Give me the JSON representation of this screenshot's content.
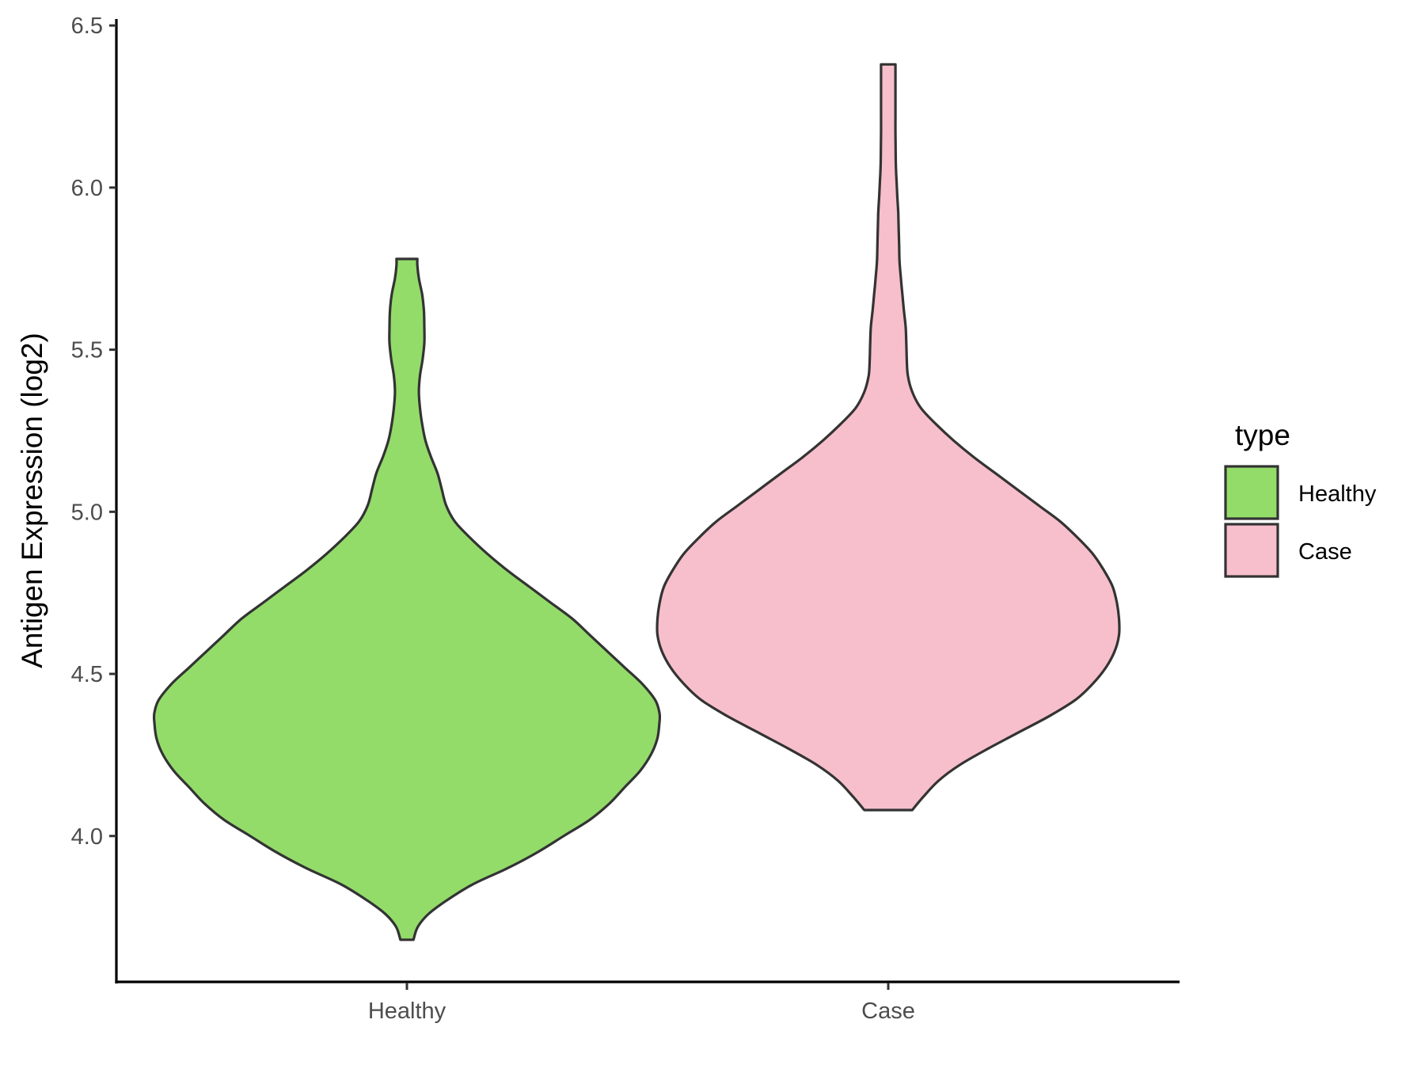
{
  "chart_data": {
    "type": "violin",
    "title": "",
    "xlabel": "",
    "ylabel": "Antigen Expression (log2)",
    "ylim": [
      3.55,
      6.52
    ],
    "yticks": [
      "4.0",
      "4.5",
      "5.0",
      "5.5",
      "6.0",
      "6.5"
    ],
    "categories": [
      "Healthy",
      "Case"
    ],
    "grid": false,
    "legend": {
      "title": "type",
      "position": "right",
      "entries": [
        "Healthy",
        "Case"
      ]
    },
    "series": [
      {
        "name": "Healthy",
        "color": "#93DC6A",
        "min": 3.68,
        "max": 5.78,
        "density": [
          [
            3.68,
            0.03
          ],
          [
            3.72,
            0.05
          ],
          [
            3.76,
            0.1
          ],
          [
            3.8,
            0.18
          ],
          [
            3.85,
            0.3
          ],
          [
            3.9,
            0.46
          ],
          [
            3.95,
            0.6
          ],
          [
            4.0,
            0.72
          ],
          [
            4.05,
            0.84
          ],
          [
            4.1,
            0.93
          ],
          [
            4.15,
            1.0
          ],
          [
            4.2,
            1.07
          ],
          [
            4.25,
            1.12
          ],
          [
            4.3,
            1.15
          ],
          [
            4.35,
            1.16
          ],
          [
            4.38,
            1.16
          ],
          [
            4.42,
            1.14
          ],
          [
            4.47,
            1.08
          ],
          [
            4.52,
            1.0
          ],
          [
            4.57,
            0.92
          ],
          [
            4.62,
            0.84
          ],
          [
            4.67,
            0.76
          ],
          [
            4.72,
            0.66
          ],
          [
            4.77,
            0.56
          ],
          [
            4.82,
            0.46
          ],
          [
            4.87,
            0.37
          ],
          [
            4.92,
            0.29
          ],
          [
            4.97,
            0.22
          ],
          [
            5.02,
            0.18
          ],
          [
            5.07,
            0.16
          ],
          [
            5.12,
            0.14
          ],
          [
            5.17,
            0.11
          ],
          [
            5.22,
            0.085
          ],
          [
            5.27,
            0.07
          ],
          [
            5.32,
            0.06
          ],
          [
            5.37,
            0.055
          ],
          [
            5.42,
            0.06
          ],
          [
            5.47,
            0.072
          ],
          [
            5.52,
            0.08
          ],
          [
            5.57,
            0.08
          ],
          [
            5.62,
            0.078
          ],
          [
            5.67,
            0.07
          ],
          [
            5.72,
            0.055
          ],
          [
            5.76,
            0.048
          ],
          [
            5.78,
            0.048
          ]
        ]
      },
      {
        "name": "Case",
        "color": "#F7BFCB",
        "min": 4.08,
        "max": 6.38,
        "density": [
          [
            4.08,
            0.11
          ],
          [
            4.12,
            0.16
          ],
          [
            4.17,
            0.23
          ],
          [
            4.22,
            0.33
          ],
          [
            4.27,
            0.46
          ],
          [
            4.32,
            0.6
          ],
          [
            4.37,
            0.74
          ],
          [
            4.42,
            0.86
          ],
          [
            4.47,
            0.94
          ],
          [
            4.52,
            1.0
          ],
          [
            4.57,
            1.04
          ],
          [
            4.62,
            1.06
          ],
          [
            4.67,
            1.06
          ],
          [
            4.72,
            1.05
          ],
          [
            4.77,
            1.03
          ],
          [
            4.82,
            0.99
          ],
          [
            4.87,
            0.94
          ],
          [
            4.92,
            0.87
          ],
          [
            4.97,
            0.79
          ],
          [
            5.02,
            0.69
          ],
          [
            5.07,
            0.59
          ],
          [
            5.12,
            0.49
          ],
          [
            5.17,
            0.39
          ],
          [
            5.22,
            0.3
          ],
          [
            5.27,
            0.22
          ],
          [
            5.32,
            0.15
          ],
          [
            5.37,
            0.11
          ],
          [
            5.42,
            0.09
          ],
          [
            5.47,
            0.085
          ],
          [
            5.52,
            0.083
          ],
          [
            5.57,
            0.08
          ],
          [
            5.62,
            0.072
          ],
          [
            5.67,
            0.065
          ],
          [
            5.72,
            0.058
          ],
          [
            5.77,
            0.052
          ],
          [
            5.82,
            0.05
          ],
          [
            5.87,
            0.048
          ],
          [
            5.92,
            0.046
          ],
          [
            5.97,
            0.042
          ],
          [
            6.02,
            0.038
          ],
          [
            6.07,
            0.035
          ],
          [
            6.12,
            0.034
          ],
          [
            6.17,
            0.033
          ],
          [
            6.22,
            0.033
          ],
          [
            6.27,
            0.033
          ],
          [
            6.32,
            0.033
          ],
          [
            6.38,
            0.033
          ]
        ]
      }
    ]
  }
}
